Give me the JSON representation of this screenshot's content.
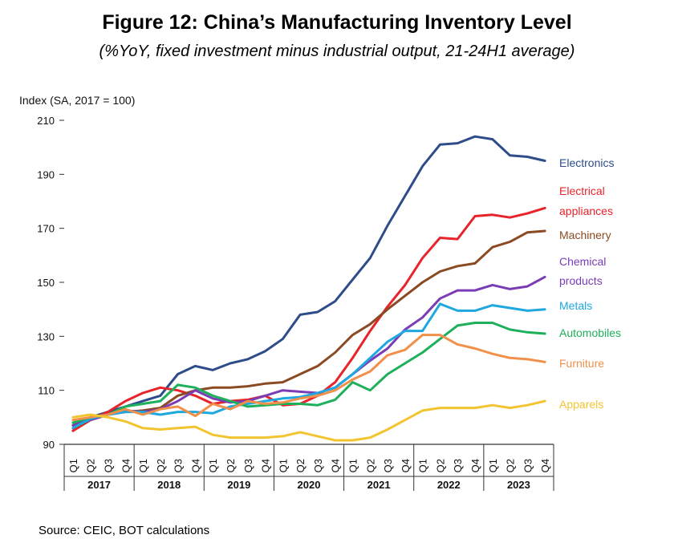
{
  "title": "Figure 12: China’s Manufacturing Inventory Level",
  "subtitle": "(%YoY, fixed investment minus industrial output, 21-24H1 average)",
  "source": "Source: CEIC, BOT calculations",
  "chart_data": {
    "type": "line",
    "ylabel": "Index (SA, 2017 = 100)",
    "ylim": [
      90,
      210
    ],
    "yticks": [
      90,
      110,
      130,
      150,
      170,
      190,
      210
    ],
    "quarters": [
      "Q1",
      "Q2",
      "Q3",
      "Q4",
      "Q1",
      "Q2",
      "Q3",
      "Q4",
      "Q1",
      "Q2",
      "Q3",
      "Q4",
      "Q1",
      "Q2",
      "Q3",
      "Q4",
      "Q1",
      "Q2",
      "Q3",
      "Q4",
      "Q1",
      "Q2",
      "Q3",
      "Q4",
      "Q1",
      "Q2",
      "Q3",
      "Q4"
    ],
    "years": [
      "2017",
      "2018",
      "2019",
      "2020",
      "2021",
      "2022",
      "2023"
    ],
    "grid": false,
    "series": [
      {
        "name": "Electronics",
        "label": [
          "Electronics"
        ],
        "color": "#2E4C8A",
        "values": [
          97,
          100,
          102,
          104,
          106,
          108,
          116,
          119,
          117.5,
          120,
          121.5,
          124.5,
          129,
          138,
          139,
          143,
          151,
          159,
          171,
          182,
          193,
          201,
          201.5,
          204,
          203,
          197,
          196.5,
          195
        ]
      },
      {
        "name": "Electrical appliances",
        "label": [
          "Electrical",
          "appliances"
        ],
        "color": "#E8232A",
        "values": [
          95,
          99,
          102,
          106,
          109,
          111,
          110,
          108,
          105,
          106,
          106.5,
          108,
          104.5,
          105,
          108,
          113,
          122,
          132,
          141,
          149,
          159,
          166.5,
          166,
          174.5,
          175,
          174,
          175.5,
          177.5
        ]
      },
      {
        "name": "Machinery",
        "label": [
          "Machinery"
        ],
        "color": "#8B4A22",
        "values": [
          96,
          99,
          101,
          102,
          102.5,
          103.5,
          108,
          110,
          111,
          111,
          111.5,
          112.5,
          113,
          116,
          119,
          124,
          130.5,
          134.5,
          140,
          145,
          150,
          154,
          156,
          157,
          163,
          165,
          168.5,
          169
        ]
      },
      {
        "name": "Chemical products",
        "label": [
          "Chemical",
          "products"
        ],
        "color": "#7A3DB5",
        "values": [
          97,
          99,
          101,
          102.5,
          102,
          103,
          106,
          110,
          107,
          105.5,
          106,
          108,
          110,
          109.5,
          109,
          111,
          116,
          121,
          125.5,
          132.5,
          137,
          144,
          147,
          147,
          149,
          147.5,
          148.5,
          152
        ]
      },
      {
        "name": "Metals",
        "label": [
          "Metals"
        ],
        "color": "#1FA8E0",
        "values": [
          96,
          99.5,
          101,
          102,
          102,
          101,
          102,
          102,
          101.5,
          104,
          105,
          106,
          107,
          107.5,
          109,
          111,
          116,
          122,
          128,
          132,
          132,
          142,
          139.5,
          139.5,
          141.5,
          140.5,
          139.5,
          140
        ]
      },
      {
        "name": "Automobiles",
        "label": [
          "Automobiles"
        ],
        "color": "#1FB05C",
        "values": [
          98,
          100,
          101,
          104,
          105,
          106,
          112,
          111,
          108,
          106,
          104,
          104.5,
          105,
          105,
          104.5,
          106.5,
          113,
          110,
          116,
          120,
          124,
          129,
          134,
          135,
          135,
          132.5,
          131.5,
          131
        ]
      },
      {
        "name": "Furniture",
        "label": [
          "Furniture"
        ],
        "color": "#F0904A",
        "values": [
          99,
          100,
          101,
          103,
          101,
          103,
          104,
          100.5,
          105,
          103,
          106,
          105,
          105.5,
          107,
          108,
          110,
          114,
          117,
          123,
          125,
          130.5,
          130.5,
          127,
          125.5,
          123.5,
          122,
          121.5,
          120.5
        ]
      },
      {
        "name": "Apparels",
        "label": [
          "Apparels"
        ],
        "color": "#F2C530",
        "values": [
          100,
          101,
          100,
          98.5,
          96,
          95.5,
          96,
          96.5,
          93.5,
          92.5,
          92.5,
          92.5,
          93,
          94.5,
          93,
          91.5,
          91.5,
          92.5,
          95.5,
          99,
          102.5,
          103.5,
          103.5,
          103.5,
          104.5,
          103.5,
          104.5,
          106
        ]
      }
    ]
  }
}
